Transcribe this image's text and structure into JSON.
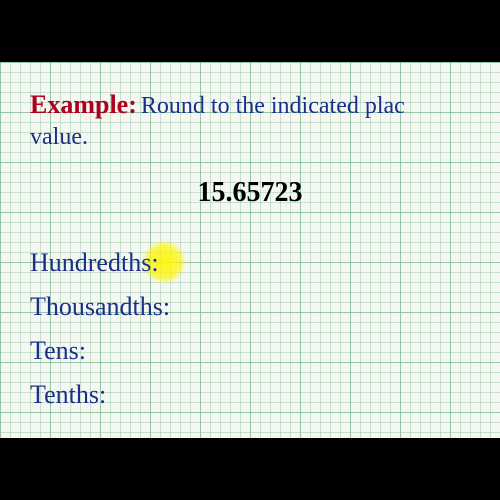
{
  "header": {
    "label": "Example:",
    "instruction_part1": "Round to the indicated plac",
    "instruction_part2": "value."
  },
  "number": "15.65723",
  "places": [
    "Hundredths:",
    "Thousandths:",
    "Tens:",
    "Tenths:"
  ],
  "colors": {
    "label": "#b00020",
    "instruction": "#1a2e8a",
    "number": "#000000",
    "highlight": "#fff500"
  }
}
